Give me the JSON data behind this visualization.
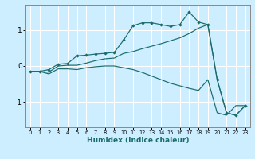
{
  "title": "",
  "xlabel": "Humidex (Indice chaleur)",
  "bg_color": "#cceeff",
  "grid_color": "#ffffff",
  "line_color": "#1a6b6b",
  "xlim": [
    -0.5,
    23.5
  ],
  "ylim": [
    -1.7,
    1.7
  ],
  "yticks": [
    -1,
    0,
    1
  ],
  "xticks": [
    0,
    1,
    2,
    3,
    4,
    5,
    6,
    7,
    8,
    9,
    10,
    11,
    12,
    13,
    14,
    15,
    16,
    17,
    18,
    19,
    20,
    21,
    22,
    23
  ],
  "line1_x": [
    0,
    1,
    2,
    3,
    4,
    5,
    6,
    7,
    8,
    9,
    10,
    11,
    12,
    13,
    14,
    15,
    16,
    17,
    18,
    19,
    20,
    21,
    22,
    23
  ],
  "line1_y": [
    -0.15,
    -0.15,
    -0.1,
    0.05,
    0.07,
    0.28,
    0.3,
    0.33,
    0.35,
    0.38,
    0.72,
    1.12,
    1.2,
    1.2,
    1.15,
    1.1,
    1.15,
    1.5,
    1.22,
    1.15,
    -0.38,
    -1.3,
    -1.37,
    -1.1
  ],
  "line2_x": [
    0,
    2,
    3,
    4,
    5,
    6,
    7,
    8,
    9,
    10,
    11,
    12,
    13,
    14,
    15,
    16,
    17,
    18,
    19,
    20,
    21,
    22,
    23
  ],
  "line2_y": [
    -0.15,
    -0.17,
    0.0,
    0.02,
    0.02,
    0.08,
    0.15,
    0.2,
    0.22,
    0.35,
    0.4,
    0.48,
    0.55,
    0.62,
    0.7,
    0.78,
    0.9,
    1.05,
    1.15,
    -0.38,
    -1.3,
    -1.37,
    -1.1
  ],
  "line3_x": [
    0,
    1,
    2,
    3,
    4,
    5,
    6,
    7,
    8,
    9,
    10,
    11,
    12,
    13,
    14,
    15,
    16,
    17,
    18,
    19,
    20,
    21,
    22,
    23
  ],
  "line3_y": [
    -0.15,
    -0.15,
    -0.22,
    -0.08,
    -0.08,
    -0.1,
    -0.05,
    -0.02,
    0.0,
    0.0,
    -0.05,
    -0.1,
    -0.18,
    -0.28,
    -0.38,
    -0.48,
    -0.55,
    -0.62,
    -0.68,
    -0.38,
    -1.3,
    -1.37,
    -1.1,
    -1.1
  ]
}
